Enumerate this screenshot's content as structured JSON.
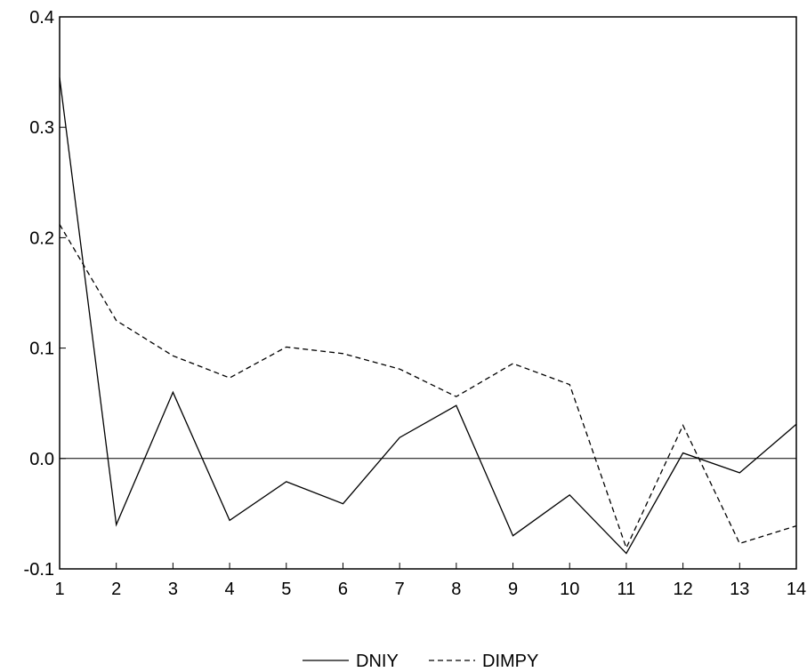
{
  "chart_data": {
    "type": "line",
    "title": "",
    "xlabel": "",
    "ylabel": "",
    "x": [
      1,
      2,
      3,
      4,
      5,
      6,
      7,
      8,
      9,
      10,
      11,
      12,
      13,
      14
    ],
    "xlim": [
      1,
      14
    ],
    "ylim": [
      -0.1,
      0.4
    ],
    "yticks": [
      "-0.1",
      "0.0",
      "0.1",
      "0.2",
      "0.3",
      "0.4"
    ],
    "xticks": [
      "1",
      "2",
      "3",
      "4",
      "5",
      "6",
      "7",
      "8",
      "9",
      "10",
      "11",
      "12",
      "13",
      "14"
    ],
    "grid": false,
    "zero_line": true,
    "legend_position": "bottom-center",
    "series": [
      {
        "name": "DNIY",
        "style": "solid",
        "color": "#000000",
        "values": [
          0.345,
          -0.06,
          0.06,
          -0.056,
          -0.021,
          -0.041,
          0.019,
          0.048,
          -0.07,
          -0.033,
          -0.086,
          0.005,
          -0.013,
          0.031
        ]
      },
      {
        "name": "DIMPY",
        "style": "dashed",
        "color": "#000000",
        "values": [
          0.212,
          0.125,
          0.093,
          0.073,
          0.101,
          0.095,
          0.081,
          0.056,
          0.086,
          0.067,
          -0.081,
          0.03,
          -0.077,
          -0.061
        ]
      }
    ]
  }
}
